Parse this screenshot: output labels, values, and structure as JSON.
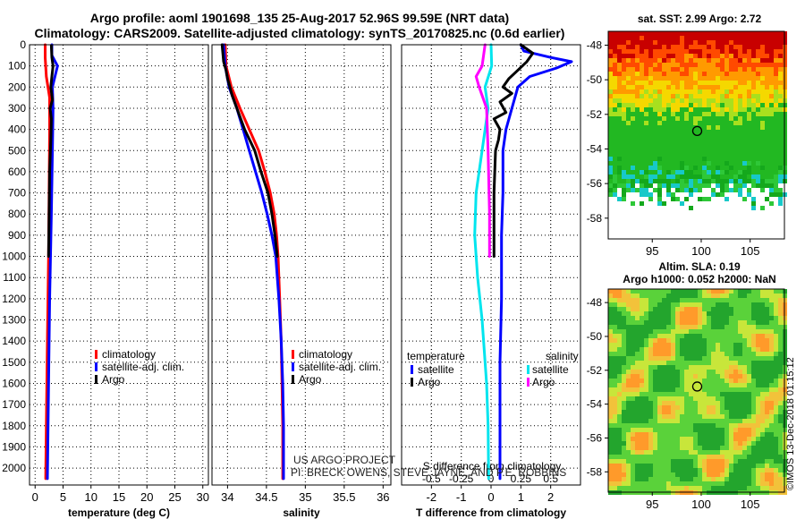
{
  "header": {
    "line1": "Argo profile: aoml 1901698_135 25-Aug-2017 52.96S 99.59E (NRT data)",
    "line2": "Climatology: CARS2009. Satellite-adjusted climatology: synTS_20170825.nc (0.6d earlier)"
  },
  "colors": {
    "climatology": "#ff0000",
    "satellite": "#0000ff",
    "argo": "#000000",
    "sat_salinity": "#00e5ee",
    "argo_salinity": "#ff00ff"
  },
  "chart_data": [
    {
      "type": "line",
      "name": "temperature-panel",
      "xlabel": "temperature (deg C)",
      "xlim": [
        -1,
        31
      ],
      "ylim": [
        2080,
        0
      ],
      "xticks": [
        0,
        5,
        10,
        15,
        20,
        25,
        30
      ],
      "yticks": [
        0,
        100,
        200,
        300,
        400,
        500,
        600,
        700,
        800,
        900,
        1000,
        1100,
        1200,
        1300,
        1400,
        1500,
        1600,
        1700,
        1800,
        1900,
        2000
      ],
      "legend": [
        "climatology",
        "satellite-adj. clim.",
        "Argo"
      ],
      "series": [
        {
          "name": "climatology",
          "color": "#ff0000",
          "points": [
            [
              1.8,
              0
            ],
            [
              1.8,
              60
            ],
            [
              2.0,
              150
            ],
            [
              2.6,
              250
            ],
            [
              2.6,
              400
            ],
            [
              2.5,
              700
            ],
            [
              2.4,
              1000
            ],
            [
              2.2,
              1400
            ],
            [
              2.0,
              1800
            ],
            [
              1.9,
              2050
            ]
          ]
        },
        {
          "name": "satellite-adj. clim.",
          "color": "#0000ff",
          "points": [
            [
              3.0,
              0
            ],
            [
              3.0,
              50
            ],
            [
              4.0,
              100
            ],
            [
              3.1,
              200
            ],
            [
              3.2,
              300
            ],
            [
              3.1,
              500
            ],
            [
              2.9,
              800
            ],
            [
              2.6,
              1200
            ],
            [
              2.4,
              1600
            ],
            [
              2.2,
              2050
            ]
          ]
        },
        {
          "name": "Argo",
          "color": "#000000",
          "points": [
            [
              2.9,
              5
            ],
            [
              3.0,
              60
            ],
            [
              3.2,
              100
            ],
            [
              3.0,
              150
            ],
            [
              2.8,
              200
            ],
            [
              3.1,
              260
            ],
            [
              2.7,
              300
            ],
            [
              2.9,
              350
            ],
            [
              2.8,
              450
            ],
            [
              2.6,
              600
            ],
            [
              2.5,
              800
            ],
            [
              2.4,
              1000
            ]
          ]
        }
      ]
    },
    {
      "type": "line",
      "name": "salinity-panel",
      "xlabel": "salinity",
      "xlim": [
        33.8,
        36.1
      ],
      "ylim": [
        2080,
        0
      ],
      "xticks": [
        34,
        34.5,
        35,
        35.5,
        36
      ],
      "yticks": [
        0,
        100,
        200,
        300,
        400,
        500,
        600,
        700,
        800,
        900,
        1000,
        1100,
        1200,
        1300,
        1400,
        1500,
        1600,
        1700,
        1800,
        1900,
        2000
      ],
      "legend": [
        "climatology",
        "satellite-adj. clim.",
        "Argo"
      ],
      "series": [
        {
          "name": "climatology",
          "color": "#ff0000",
          "points": [
            [
              33.97,
              0
            ],
            [
              33.98,
              100
            ],
            [
              34.05,
              200
            ],
            [
              34.16,
              300
            ],
            [
              34.28,
              400
            ],
            [
              34.4,
              500
            ],
            [
              34.48,
              600
            ],
            [
              34.55,
              700
            ],
            [
              34.6,
              800
            ],
            [
              34.63,
              900
            ],
            [
              34.65,
              1000
            ],
            [
              34.67,
              1200
            ],
            [
              34.69,
              1400
            ],
            [
              34.7,
              1600
            ],
            [
              34.71,
              1800
            ],
            [
              34.71,
              2050
            ]
          ]
        },
        {
          "name": "satellite-adj. clim.",
          "color": "#0000ff",
          "points": [
            [
              33.95,
              0
            ],
            [
              33.97,
              100
            ],
            [
              34.02,
              200
            ],
            [
              34.12,
              300
            ],
            [
              34.2,
              400
            ],
            [
              34.28,
              500
            ],
            [
              34.36,
              600
            ],
            [
              34.44,
              700
            ],
            [
              34.51,
              800
            ],
            [
              34.57,
              900
            ],
            [
              34.62,
              1000
            ],
            [
              34.66,
              1200
            ],
            [
              34.69,
              1400
            ],
            [
              34.71,
              1600
            ],
            [
              34.72,
              1800
            ],
            [
              34.72,
              2050
            ]
          ]
        },
        {
          "name": "Argo",
          "color": "#000000",
          "points": [
            [
              33.93,
              0
            ],
            [
              33.95,
              80
            ],
            [
              33.98,
              120
            ],
            [
              34.0,
              160
            ],
            [
              34.03,
              200
            ],
            [
              34.06,
              240
            ],
            [
              34.12,
              300
            ],
            [
              34.22,
              400
            ],
            [
              34.35,
              500
            ],
            [
              34.43,
              600
            ],
            [
              34.52,
              700
            ],
            [
              34.57,
              800
            ],
            [
              34.61,
              900
            ],
            [
              34.64,
              1000
            ]
          ]
        }
      ]
    },
    {
      "type": "line",
      "name": "difference-panel",
      "xlabel": "T difference from climatology",
      "x2label": "S difference from climatology",
      "xlim": [
        -3,
        3
      ],
      "ylim": [
        2080,
        0
      ],
      "xticks": [
        -2,
        -1,
        0,
        1,
        2
      ],
      "x2ticks": [
        -0.5,
        -0.25,
        0,
        0.25,
        0.5
      ],
      "x2ticklabels": [
        "-0.5",
        "-0.25",
        "0",
        "0.25",
        "0.5"
      ],
      "yticks": [
        0,
        100,
        200,
        300,
        400,
        500,
        600,
        700,
        800,
        900,
        1000,
        1100,
        1200,
        1300,
        1400,
        1500,
        1600,
        1700,
        1800,
        1900,
        2000
      ],
      "legend_temperature": [
        "temperature",
        "satellite",
        "Argo"
      ],
      "legend_salinity": [
        "salinity",
        "satellite",
        "Argo"
      ],
      "series": [
        {
          "name": "T satellite",
          "color": "#0000ff",
          "points": [
            [
              1.0,
              0
            ],
            [
              1.1,
              30
            ],
            [
              2.0,
              60
            ],
            [
              2.7,
              80
            ],
            [
              2.2,
              110
            ],
            [
              1.3,
              150
            ],
            [
              0.9,
              200
            ],
            [
              0.7,
              300
            ],
            [
              0.5,
              400
            ],
            [
              0.4,
              500
            ],
            [
              0.4,
              700
            ],
            [
              0.35,
              900
            ],
            [
              0.35,
              1200
            ],
            [
              0.3,
              1500
            ],
            [
              0.3,
              1800
            ],
            [
              0.3,
              2050
            ]
          ]
        },
        {
          "name": "T Argo",
          "color": "#000000",
          "points": [
            [
              1.0,
              0
            ],
            [
              1.4,
              40
            ],
            [
              1.2,
              80
            ],
            [
              0.9,
              120
            ],
            [
              0.6,
              160
            ],
            [
              0.4,
              200
            ],
            [
              0.7,
              230
            ],
            [
              0.3,
              270
            ],
            [
              0.5,
              320
            ],
            [
              0.1,
              350
            ],
            [
              0.3,
              400
            ],
            [
              0.25,
              450
            ],
            [
              0.15,
              500
            ],
            [
              0.1,
              700
            ],
            [
              0.1,
              1000
            ]
          ]
        },
        {
          "name": "S satellite",
          "color": "#00e5ee",
          "points": [
            [
              0,
              0
            ],
            [
              0.02,
              100
            ],
            [
              -0.2,
              200
            ],
            [
              -0.1,
              300
            ],
            [
              -0.3,
              500
            ],
            [
              -0.5,
              700
            ],
            [
              -0.55,
              900
            ],
            [
              -0.45,
              1100
            ],
            [
              -0.3,
              1300
            ],
            [
              -0.15,
              1600
            ],
            [
              -0.1,
              1800
            ],
            [
              -0.08,
              2050
            ]
          ]
        },
        {
          "name": "S Argo",
          "color": "#ff00ff",
          "points": [
            [
              -0.2,
              0
            ],
            [
              -0.3,
              100
            ],
            [
              -0.5,
              150
            ],
            [
              -0.4,
              200
            ],
            [
              -0.15,
              300
            ],
            [
              -0.1,
              500
            ],
            [
              -0.05,
              800
            ],
            [
              -0.05,
              1000
            ]
          ]
        }
      ]
    },
    {
      "type": "heatmap",
      "name": "sst-map",
      "title": "sat. SST: 2.99 Argo: 2.72",
      "xticks": [
        95,
        100,
        105
      ],
      "yticks": [
        -48,
        -50,
        -52,
        -54,
        -56,
        -58
      ],
      "xlim": [
        90.5,
        108.5
      ],
      "ylim": [
        -59.2,
        -47.2
      ],
      "float_position": [
        99.59,
        -52.96
      ]
    },
    {
      "type": "heatmap",
      "name": "sla-map",
      "title_line1": "Altim. SLA: 0.19",
      "title_line2": "Argo h1000: 0.052 h2000: NaN",
      "xticks": [
        95,
        100,
        105
      ],
      "yticks": [
        -48,
        -50,
        -52,
        -54,
        -56,
        -58
      ],
      "xlim": [
        90.5,
        108.5
      ],
      "ylim": [
        -59.2,
        -47.2
      ],
      "float_position": [
        99.59,
        -52.96
      ]
    }
  ],
  "credits": {
    "project": "US ARGO PROJECT",
    "pis": "PI: BRECK OWENS, STEVE JAYNE, AND P.E. ROBBINS",
    "stamp": "©IMOS 13-Dec-2018 01:15:12"
  }
}
